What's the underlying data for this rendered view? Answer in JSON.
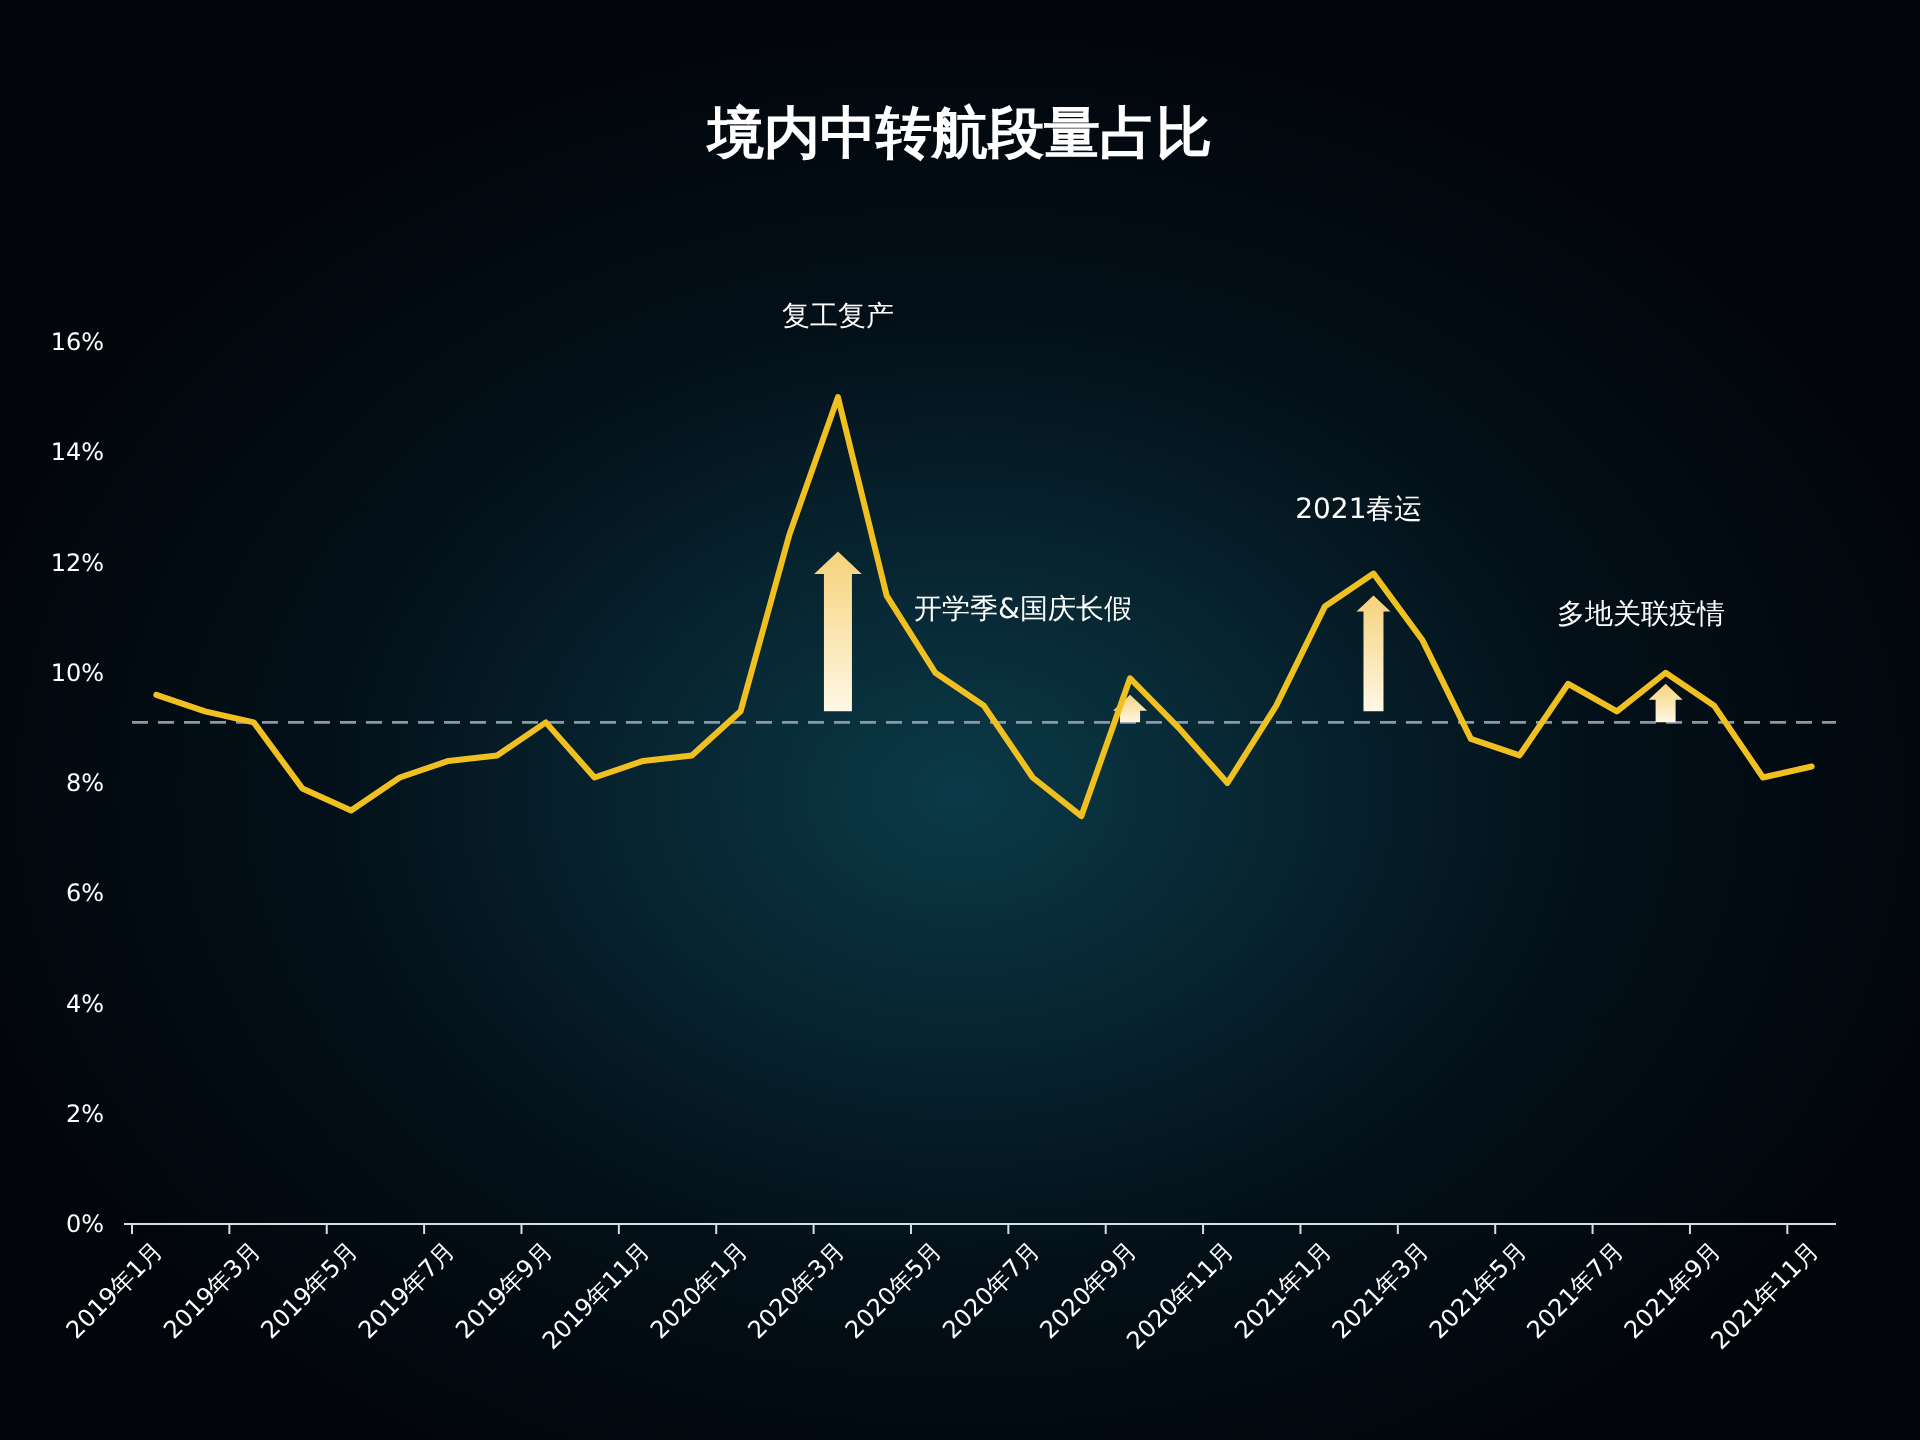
{
  "chart_data": {
    "type": "line",
    "title": "境内中转航段量占比",
    "categories": [
      "2019年1月",
      null,
      "2019年3月",
      null,
      "2019年5月",
      null,
      "2019年7月",
      null,
      "2019年9月",
      null,
      "2019年11月",
      null,
      "2020年1月",
      null,
      "2020年3月",
      null,
      "2020年5月",
      null,
      "2020年7月",
      null,
      "2020年9月",
      null,
      "2020年11月",
      null,
      "2021年1月",
      null,
      "2021年3月",
      null,
      "2021年5月",
      null,
      "2021年7月",
      null,
      "2021年9月",
      null,
      "2021年11月"
    ],
    "series": [
      {
        "color": "#f0c020",
        "values": [
          9.6,
          9.3,
          9.1,
          7.9,
          7.5,
          8.1,
          8.4,
          8.5,
          9.1,
          8.1,
          8.4,
          8.5,
          9.3,
          12.5,
          15.0,
          11.4,
          10.0,
          9.4,
          8.1,
          7.4,
          9.9,
          9.0,
          8.0,
          9.4,
          11.2,
          11.8,
          10.6,
          8.8,
          8.5,
          9.8,
          9.3,
          10.0,
          9.4,
          8.1,
          8.3
        ]
      }
    ],
    "ylim": [
      0,
      16
    ],
    "yticks": [
      {
        "value": 0,
        "label": "0%"
      },
      {
        "value": 2,
        "label": "2%"
      },
      {
        "value": 4,
        "label": "4%"
      },
      {
        "value": 6,
        "label": "6%"
      },
      {
        "value": 8,
        "label": "8%"
      },
      {
        "value": 10,
        "label": "10%"
      },
      {
        "value": 12,
        "label": "12%"
      },
      {
        "value": 14,
        "label": "14%"
      },
      {
        "value": 16,
        "label": "16%"
      }
    ],
    "ref_lines": [
      {
        "axis": "y",
        "value": 9.1,
        "color": "#8a9aa4",
        "line_style": "dashed"
      }
    ],
    "annotations": [
      "复工复产",
      "开学季&国庆长假",
      "2021春运",
      "多地关联疫情"
    ],
    "grid": false,
    "marker": "none",
    "line_style": "solid"
  }
}
